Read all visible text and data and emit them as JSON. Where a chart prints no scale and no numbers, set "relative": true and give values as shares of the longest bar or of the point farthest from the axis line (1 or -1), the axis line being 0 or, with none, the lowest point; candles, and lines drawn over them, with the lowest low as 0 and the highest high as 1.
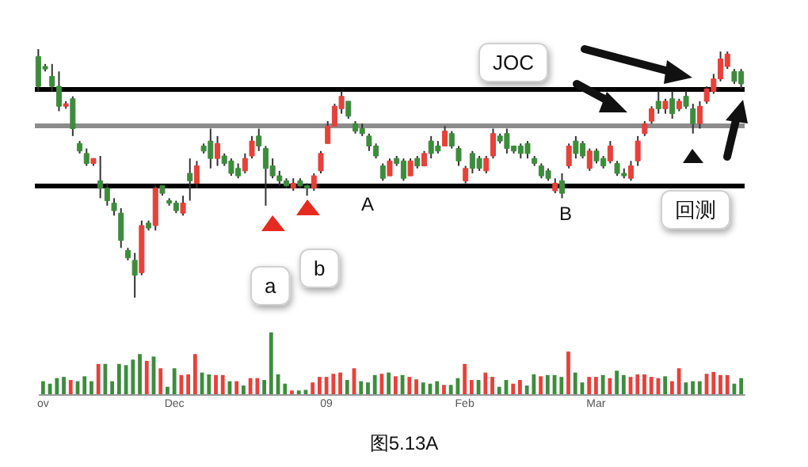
{
  "chart_data": [
    {
      "type": "candlestick",
      "relative": true,
      "tick_labels": false,
      "categories": [
        null,
        null,
        null,
        null,
        null,
        null,
        null,
        null,
        null,
        null,
        null,
        null,
        null,
        null,
        null,
        null,
        null,
        null,
        null,
        null,
        null,
        null,
        null,
        null,
        null,
        null,
        null,
        null,
        null,
        null,
        null,
        null,
        null,
        null,
        null,
        null,
        null,
        null,
        null,
        null,
        null,
        null,
        null,
        null,
        null,
        null,
        null,
        null,
        null,
        null,
        null,
        null,
        null,
        null,
        null,
        null,
        null,
        null,
        null,
        null,
        null,
        null,
        null,
        null,
        null,
        null,
        null,
        null,
        null,
        null,
        null,
        null,
        null,
        null,
        null,
        null,
        null,
        null,
        null,
        null,
        null,
        null,
        null,
        null,
        null,
        null,
        null,
        null,
        null,
        null,
        null,
        null,
        null,
        null,
        null,
        null,
        null,
        null,
        null,
        null,
        null,
        null,
        null
      ],
      "ohlc": [
        [
          0.97,
          1.0,
          0.83,
          0.85
        ],
        [
          0.93,
          0.94,
          0.91,
          0.92
        ],
        [
          0.89,
          0.94,
          0.83,
          0.85
        ],
        [
          0.85,
          0.91,
          0.75,
          0.77
        ],
        [
          0.77,
          0.79,
          0.76,
          0.78
        ],
        [
          0.8,
          0.81,
          0.65,
          0.68
        ],
        [
          0.62,
          0.63,
          0.58,
          0.59
        ],
        [
          0.58,
          0.6,
          0.53,
          0.54
        ],
        [
          0.54,
          0.56,
          0.53,
          0.56
        ],
        [
          0.47,
          0.57,
          0.4,
          0.44
        ],
        [
          0.44,
          0.46,
          0.37,
          0.39
        ],
        [
          0.38,
          0.4,
          0.33,
          0.35
        ],
        [
          0.34,
          0.36,
          0.2,
          0.23
        ],
        [
          0.19,
          0.2,
          0.15,
          0.16
        ],
        [
          0.15,
          0.18,
          0.0,
          0.09
        ],
        [
          0.1,
          0.31,
          0.09,
          0.29
        ],
        [
          0.3,
          0.31,
          0.27,
          0.28
        ],
        [
          0.29,
          0.45,
          0.27,
          0.44
        ],
        [
          0.45,
          0.45,
          0.41,
          0.42
        ],
        [
          0.39,
          0.4,
          0.37,
          0.38
        ],
        [
          0.38,
          0.39,
          0.34,
          0.35
        ],
        [
          0.34,
          0.41,
          0.33,
          0.38
        ],
        [
          0.5,
          0.56,
          0.39,
          0.47
        ],
        [
          0.46,
          0.55,
          0.44,
          0.53
        ],
        [
          0.61,
          0.62,
          0.58,
          0.59
        ],
        [
          0.63,
          0.68,
          0.52,
          0.56
        ],
        [
          0.56,
          0.65,
          0.53,
          0.62
        ],
        [
          0.57,
          0.58,
          0.53,
          0.54
        ],
        [
          0.55,
          0.56,
          0.49,
          0.5
        ],
        [
          0.52,
          0.54,
          0.48,
          0.49
        ],
        [
          0.51,
          0.58,
          0.5,
          0.56
        ],
        [
          0.57,
          0.65,
          0.56,
          0.63
        ],
        [
          0.65,
          0.68,
          0.59,
          0.61
        ],
        [
          0.6,
          0.61,
          0.37,
          0.52
        ],
        [
          0.53,
          0.56,
          0.48,
          0.49
        ],
        [
          0.49,
          0.51,
          0.45,
          0.47
        ],
        [
          0.47,
          0.48,
          0.44,
          0.45
        ],
        [
          0.44,
          0.48,
          0.43,
          0.46
        ],
        [
          0.47,
          0.48,
          0.44,
          0.45
        ],
        [
          0.45,
          0.46,
          0.41,
          0.44
        ],
        [
          0.44,
          0.5,
          0.43,
          0.49
        ],
        [
          0.51,
          0.59,
          0.5,
          0.58
        ],
        [
          0.62,
          0.71,
          0.62,
          0.69
        ],
        [
          0.69,
          0.78,
          0.69,
          0.77
        ],
        [
          0.76,
          0.83,
          0.74,
          0.81
        ],
        [
          0.79,
          0.79,
          0.72,
          0.73
        ],
        [
          0.7,
          0.71,
          0.66,
          0.67
        ],
        [
          0.68,
          0.7,
          0.65,
          0.66
        ],
        [
          0.65,
          0.66,
          0.59,
          0.61
        ],
        [
          0.61,
          0.62,
          0.56,
          0.57
        ],
        [
          0.53,
          0.54,
          0.47,
          0.48
        ],
        [
          0.49,
          0.56,
          0.49,
          0.55
        ],
        [
          0.56,
          0.57,
          0.53,
          0.54
        ],
        [
          0.55,
          0.56,
          0.47,
          0.48
        ],
        [
          0.49,
          0.56,
          0.49,
          0.55
        ],
        [
          0.56,
          0.57,
          0.52,
          0.53
        ],
        [
          0.53,
          0.59,
          0.53,
          0.58
        ],
        [
          0.63,
          0.65,
          0.56,
          0.58
        ],
        [
          0.61,
          0.63,
          0.58,
          0.59
        ],
        [
          0.61,
          0.69,
          0.61,
          0.67
        ],
        [
          0.66,
          0.67,
          0.6,
          0.61
        ],
        [
          0.6,
          0.61,
          0.53,
          0.55
        ],
        [
          0.47,
          0.53,
          0.46,
          0.52
        ],
        [
          0.58,
          0.59,
          0.5,
          0.52
        ],
        [
          0.56,
          0.57,
          0.51,
          0.52
        ],
        [
          0.51,
          0.57,
          0.5,
          0.56
        ],
        [
          0.57,
          0.68,
          0.56,
          0.66
        ],
        [
          0.65,
          0.66,
          0.62,
          0.63
        ],
        [
          0.66,
          0.68,
          0.58,
          0.6
        ],
        [
          0.61,
          0.61,
          0.58,
          0.59
        ],
        [
          0.61,
          0.62,
          0.56,
          0.58
        ],
        [
          0.62,
          0.63,
          0.56,
          0.58
        ],
        [
          0.56,
          0.57,
          0.53,
          0.54
        ],
        [
          0.53,
          0.54,
          0.48,
          0.49
        ],
        [
          0.51,
          0.52,
          0.47,
          0.48
        ],
        [
          0.43,
          0.48,
          0.42,
          0.46
        ],
        [
          0.47,
          0.5,
          0.4,
          0.42
        ],
        [
          0.53,
          0.62,
          0.52,
          0.61
        ],
        [
          0.63,
          0.65,
          0.56,
          0.58
        ],
        [
          0.62,
          0.63,
          0.56,
          0.57
        ],
        [
          0.52,
          0.6,
          0.51,
          0.59
        ],
        [
          0.59,
          0.6,
          0.54,
          0.55
        ],
        [
          0.56,
          0.57,
          0.52,
          0.53
        ],
        [
          0.55,
          0.63,
          0.54,
          0.61
        ],
        [
          0.54,
          0.55,
          0.49,
          0.5
        ],
        [
          0.5,
          0.52,
          0.48,
          0.49
        ],
        [
          0.48,
          0.55,
          0.47,
          0.53
        ],
        [
          0.55,
          0.65,
          0.53,
          0.63
        ],
        [
          0.66,
          0.71,
          0.65,
          0.7
        ],
        [
          0.71,
          0.77,
          0.7,
          0.76
        ],
        [
          0.79,
          0.83,
          0.74,
          0.76
        ],
        [
          0.76,
          0.8,
          0.74,
          0.79
        ],
        [
          0.8,
          0.83,
          0.72,
          0.74
        ],
        [
          0.76,
          0.8,
          0.75,
          0.79
        ],
        [
          0.81,
          0.83,
          0.76,
          0.77
        ],
        [
          0.76,
          0.78,
          0.66,
          0.7
        ],
        [
          0.7,
          0.79,
          0.68,
          0.77
        ],
        [
          0.79,
          0.85,
          0.78,
          0.84
        ],
        [
          0.83,
          0.9,
          0.82,
          0.88
        ],
        [
          0.88,
          0.99,
          0.87,
          0.96
        ],
        [
          0.93,
          0.99,
          0.92,
          0.98
        ],
        [
          0.91,
          0.92,
          0.86,
          0.87
        ],
        [
          0.91,
          0.92,
          0.84,
          0.86
        ]
      ],
      "ref_lines": [
        {
          "axis": "y",
          "value": 0.45,
          "color": "#000000"
        },
        {
          "axis": "y",
          "value": 0.84,
          "color": "#000000"
        },
        {
          "axis": "y",
          "value": 0.69,
          "color": "#8c8c8c"
        }
      ],
      "annotations": [
        "JOC",
        "a",
        "b",
        "A",
        "B",
        "回测"
      ]
    },
    {
      "type": "bar",
      "relative": true,
      "tick_labels": "x",
      "title": "图5.13A",
      "categories": [
        "ov",
        null,
        null,
        null,
        null,
        null,
        null,
        null,
        null,
        null,
        null,
        null,
        null,
        null,
        null,
        null,
        null,
        null,
        null,
        "Dec",
        null,
        null,
        null,
        null,
        null,
        null,
        null,
        null,
        null,
        null,
        null,
        null,
        null,
        null,
        null,
        null,
        null,
        null,
        null,
        null,
        null,
        "09",
        null,
        null,
        null,
        null,
        null,
        null,
        null,
        null,
        null,
        null,
        null,
        null,
        null,
        null,
        null,
        null,
        null,
        null,
        null,
        "Feb",
        null,
        null,
        null,
        null,
        null,
        null,
        null,
        null,
        null,
        null,
        null,
        null,
        null,
        null,
        null,
        null,
        null,
        null,
        "Mar",
        null,
        null,
        null,
        null,
        null,
        null,
        null,
        null,
        null,
        null,
        null,
        null,
        null,
        null,
        null,
        null,
        null,
        null,
        null,
        null,
        null
      ],
      "values": [
        0.21,
        0.17,
        0.26,
        0.28,
        0.23,
        0.21,
        0.29,
        0.21,
        0.49,
        0.49,
        0.21,
        0.49,
        0.47,
        0.56,
        0.65,
        0.54,
        0.61,
        0.42,
        0.12,
        0.42,
        0.31,
        0.32,
        0.65,
        0.35,
        0.32,
        0.31,
        0.31,
        0.21,
        0.21,
        0.14,
        0.26,
        0.26,
        0.23,
        1,
        0.32,
        0.17,
        0.06,
        0.06,
        0.07,
        0.19,
        0.28,
        0.28,
        0.33,
        0.35,
        0.23,
        0.42,
        0.21,
        0.19,
        0.31,
        0.33,
        0.35,
        0.29,
        0.31,
        0.28,
        0.24,
        0.19,
        0.17,
        0.21,
        0.15,
        0.15,
        0.26,
        0.49,
        0.23,
        0.23,
        0.35,
        0.28,
        0.12,
        0.23,
        0.17,
        0.23,
        0.14,
        0.32,
        0.29,
        0.31,
        0.31,
        0.28,
        0.69,
        0.35,
        0.19,
        0.28,
        0.28,
        0.31,
        0.26,
        0.38,
        0.31,
        0.28,
        0.32,
        0.32,
        0.28,
        0.26,
        0.29,
        0.21,
        0.42,
        0.19,
        0.21,
        0.21,
        0.33,
        0.36,
        0.31,
        0.31,
        0.17,
        0.26
      ],
      "colors": [
        "#3d8c3d",
        "#3d8c3d",
        "#3d8c3d",
        "#3d8c3d",
        "#e8403a",
        "#3d8c3d",
        "#3d8c3d",
        "#3d8c3d",
        "#e8403a",
        "#3d8c3d",
        "#3d8c3d",
        "#3d8c3d",
        "#3d8c3d",
        "#3d8c3d",
        "#3d8c3d",
        "#e8403a",
        "#3d8c3d",
        "#e8403a",
        "#3d8c3d",
        "#3d8c3d",
        "#e8403a",
        "#e8403a",
        "#e8403a",
        "#3d8c3d",
        "#3d8c3d",
        "#e8403a",
        "#e8403a",
        "#3d8c3d",
        "#e8403a",
        "#3d8c3d",
        "#e8403a",
        "#e8403a",
        "#3d8c3d",
        "#3d8c3d",
        "#3d8c3d",
        "#3d8c3d",
        "#e8403a",
        "#3d8c3d",
        "#3d8c3d",
        "#e8403a",
        "#e8403a",
        "#e8403a",
        "#e8403a",
        "#e8403a",
        "#3d8c3d",
        "#e8403a",
        "#3d8c3d",
        "#3d8c3d",
        "#3d8c3d",
        "#e8403a",
        "#3d8c3d",
        "#e8403a",
        "#3d8c3d",
        "#e8403a",
        "#e8403a",
        "#3d8c3d",
        "#3d8c3d",
        "#3d8c3d",
        "#e8403a",
        "#3d8c3d",
        "#3d8c3d",
        "#e8403a",
        "#e8403a",
        "#3d8c3d",
        "#e8403a",
        "#e8403a",
        "#3d8c3d",
        "#3d8c3d",
        "#e8403a",
        "#e8403a",
        "#3d8c3d",
        "#3d8c3d",
        "#e8403a",
        "#3d8c3d",
        "#3d8c3d",
        "#3d8c3d",
        "#e8403a",
        "#3d8c3d",
        "#3d8c3d",
        "#e8403a",
        "#e8403a",
        "#3d8c3d",
        "#e8403a",
        "#3d8c3d",
        "#3d8c3d",
        "#e8403a",
        "#e8403a",
        "#e8403a",
        "#e8403a",
        "#e8403a",
        "#3d8c3d",
        "#e8403a",
        "#e8403a",
        "#3d8c3d",
        "#3d8c3d",
        "#3d8c3d",
        "#e8403a",
        "#e8403a",
        "#e8403a",
        "#e8403a",
        "#3d8c3d",
        "#3d8c3d"
      ]
    }
  ]
}
